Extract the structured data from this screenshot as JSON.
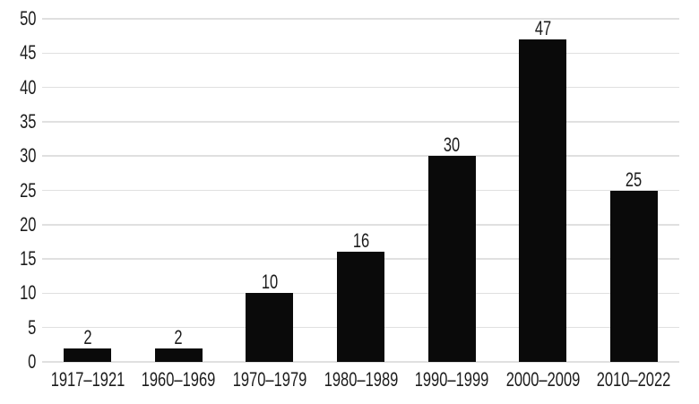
{
  "chart_data": {
    "type": "bar",
    "title": "",
    "xlabel": "",
    "ylabel": "",
    "categories": [
      "1917–1921",
      "1960–1969",
      "1970–1979",
      "1980–1989",
      "1990–1999",
      "2000–2009",
      "2010–2022"
    ],
    "values": [
      2,
      2,
      10,
      16,
      30,
      47,
      25
    ],
    "data_labels": [
      2,
      2,
      10,
      16,
      30,
      47,
      25
    ],
    "ylim": [
      0,
      50
    ],
    "yticks": [
      0,
      5,
      10,
      15,
      20,
      25,
      30,
      35,
      40,
      45,
      50
    ],
    "grid": true,
    "legend": false,
    "bar_color": "#0a0a0a",
    "gridline_color": "#e0e0e0",
    "text_color": "#1c1c1c",
    "background_color": "#ffffff"
  }
}
